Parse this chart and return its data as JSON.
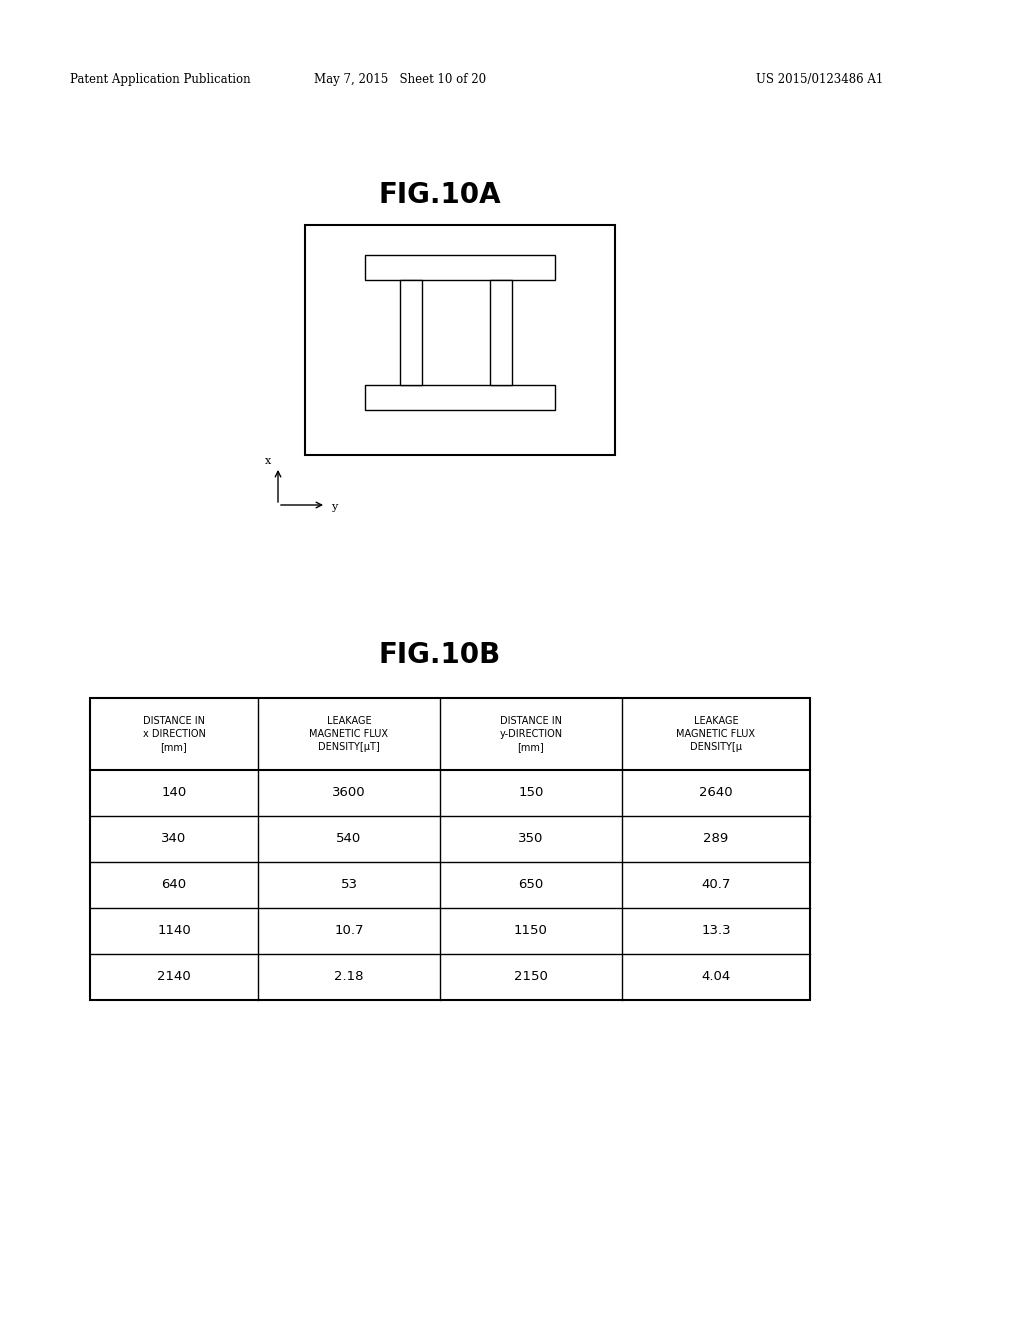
{
  "header_left": "Patent Application Publication",
  "header_mid": "May 7, 2015   Sheet 10 of 20",
  "header_right": "US 2015/0123486 A1",
  "fig10a_title": "FIG.10A",
  "fig10b_title": "FIG.10B",
  "table_headers": [
    "DISTANCE IN\nx DIRECTION\n[mm]",
    "LEAKAGE\nMAGNETIC FLUX\nDENSITY[μT]",
    "DISTANCE IN\ny-DIRECTION\n[mm]",
    "LEAKAGE\nMAGNETIC FLUX\nDENSITY[μ"
  ],
  "table_data": [
    [
      "140",
      "3600",
      "150",
      "2640"
    ],
    [
      "340",
      "540",
      "350",
      "289"
    ],
    [
      "640",
      "53",
      "650",
      "40.7"
    ],
    [
      "1140",
      "10.7",
      "1150",
      "13.3"
    ],
    [
      "2140",
      "2.18",
      "2150",
      "4.04"
    ]
  ],
  "bg_color": "#ffffff",
  "text_color": "#000000",
  "line_color": "#000000"
}
